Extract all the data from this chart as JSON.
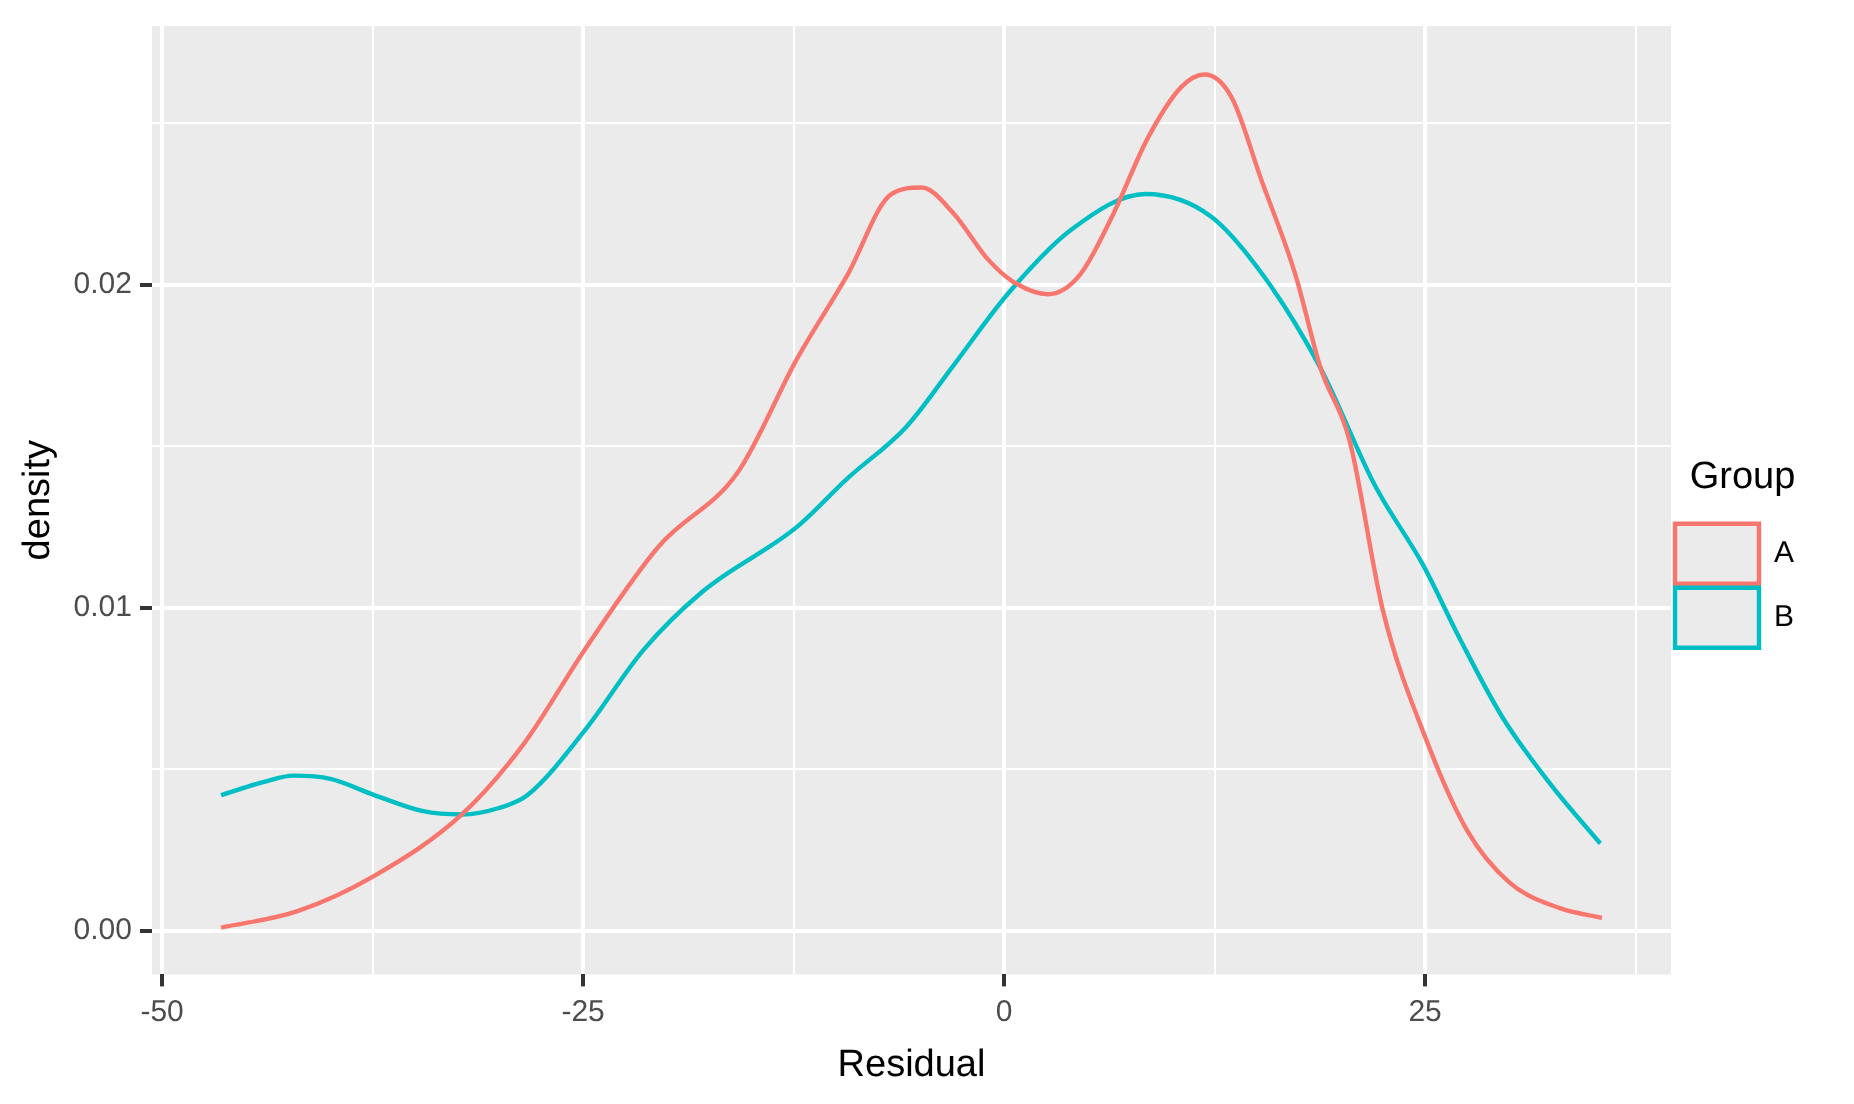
{
  "chart_data": {
    "type": "line",
    "xlabel": "Residual",
    "ylabel": "density",
    "legend_title": "Group",
    "legend": "right",
    "grid": true,
    "marker": "none",
    "line_style": "solid",
    "xlim": [
      -50.6,
      39.6
    ],
    "xticks": [
      -50,
      {
        "value": -37.5,
        "label": null
      },
      -25,
      {
        "value": -12.5,
        "label": null
      },
      0,
      {
        "value": 12.5,
        "label": null
      },
      25,
      {
        "value": 37.5,
        "label": null
      }
    ],
    "ylim": [
      -0.00135,
      0.028
    ],
    "yticks": [
      {
        "value": 0,
        "label": "0.00"
      },
      {
        "value": 0.005,
        "label": null
      },
      {
        "value": 0.01,
        "label": "0.01"
      },
      {
        "value": 0.015,
        "label": null
      },
      {
        "value": 0.02,
        "label": "0.02"
      },
      {
        "value": 0.025,
        "label": null
      }
    ],
    "series": [
      {
        "name": "A",
        "color": "#f8766d",
        "x": [
          -46.5,
          -42,
          -37.4,
          -32.2,
          -28.5,
          -24.9,
          -20.5,
          -15.8,
          -12.3,
          -9.3,
          -6.7,
          -4.9,
          -3,
          -1,
          0.5,
          2.6,
          4.5,
          6.5,
          8.5,
          10.5,
          11.9,
          13.5,
          15.3,
          17.3,
          18.8,
          20.5,
          22.5,
          25,
          27.5,
          30,
          33,
          35.5
        ],
        "values": [
          0.0001,
          0.0006,
          0.0017,
          0.0036,
          0.0058,
          0.0087,
          0.0119,
          0.0142,
          0.0177,
          0.0203,
          0.0228,
          0.023,
          0.0222,
          0.0208,
          0.0201,
          0.0197,
          0.0203,
          0.0222,
          0.0245,
          0.0261,
          0.0265,
          0.0258,
          0.0232,
          0.0203,
          0.0174,
          0.0152,
          0.0099,
          0.006,
          0.0031,
          0.0015,
          0.0007,
          0.0004
        ]
      },
      {
        "name": "B",
        "color": "#00bfc4",
        "x": [
          -46.5,
          -44,
          -42.2,
          -40,
          -37.4,
          -34.5,
          -32.2,
          -30,
          -28.3,
          -24.9,
          -21.4,
          -17.9,
          -12.3,
          -9.3,
          -5.8,
          -3,
          0.2,
          4,
          8.4,
          12.3,
          15.5,
          18.8,
          22,
          24.9,
          27,
          29.6,
          32.5,
          35.4
        ],
        "values": [
          0.0042,
          0.0046,
          0.0048,
          0.0047,
          0.0042,
          0.0037,
          0.0036,
          0.0038,
          0.0042,
          0.0062,
          0.0087,
          0.0105,
          0.0125,
          0.014,
          0.0156,
          0.0175,
          0.0197,
          0.0217,
          0.0228,
          0.0221,
          0.0202,
          0.0174,
          0.0138,
          0.0113,
          0.0091,
          0.0066,
          0.0045,
          0.0027
        ]
      }
    ]
  }
}
